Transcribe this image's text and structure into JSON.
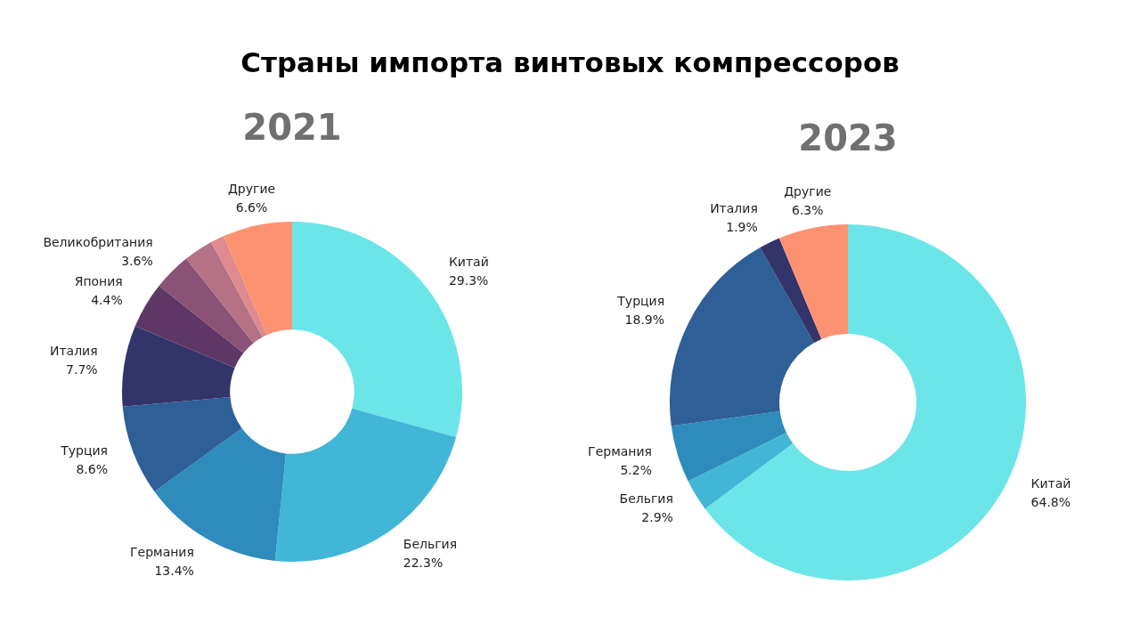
{
  "chart_data": [
    {
      "type": "donut",
      "title": "Страны импорта винтовых компрессоров",
      "subtitle": "2021",
      "categories": [
        "Китай",
        "Бельгия",
        "Германия",
        "Турция",
        "Италия",
        "Япония",
        "Великобритания",
        null,
        null,
        "Другие"
      ],
      "values": [
        29.3,
        22.3,
        13.4,
        8.6,
        7.7,
        4.4,
        3.6,
        2.8,
        1.3,
        6.6
      ],
      "value_labels": [
        "29.3%",
        "22.3%",
        "13.4%",
        "8.6%",
        "7.7%",
        "4.4%",
        "3.6%",
        null,
        null,
        "6.6%"
      ],
      "colors": [
        "#6ce5e8",
        "#42b6d6",
        "#2e8bbb",
        "#2e5f96",
        "#32346a",
        "#5e3766",
        "#8a5275",
        "#b57185",
        "#de8a8e",
        "#fd9273"
      ],
      "legend": false
    },
    {
      "type": "donut",
      "subtitle": "2023",
      "categories": [
        "Китай",
        "Бельгия",
        "Германия",
        "Турция",
        "Италия",
        "Другие"
      ],
      "values": [
        64.8,
        2.9,
        5.2,
        18.9,
        1.9,
        6.3
      ],
      "value_labels": [
        "64.8%",
        "2.9%",
        "5.2%",
        "18.9%",
        "1.9%",
        "6.3%"
      ],
      "colors": [
        "#6ce5e8",
        "#42b6d6",
        "#2e8bbb",
        "#2e5f96",
        "#32346a",
        "#fd9273"
      ],
      "legend": false
    }
  ]
}
